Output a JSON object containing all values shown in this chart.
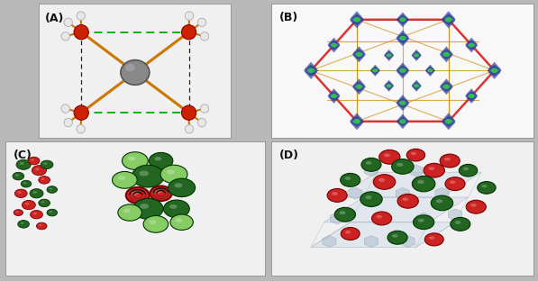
{
  "figure_bg": "#b8b8b8",
  "panel_bg": "#f0f0f0",
  "panels": [
    "(A)",
    "(B)",
    "(C)",
    "(D)"
  ],
  "label_fontsize": 9,
  "label_color": "#111111",
  "panel_A": {
    "center_atom_color": "#888888",
    "bh4_color": "#cc2200",
    "h_color": "#e8e8e8",
    "bond_color": "#cc7700",
    "dashed_black": "#222222",
    "dashed_green": "#00aa00"
  },
  "panel_B": {
    "hex_color": "#dd3333",
    "line_color": "#cc8800",
    "cluster_color": "#334499",
    "dot_color": "#33bb55",
    "bg": "#f8f8f8"
  },
  "panel_C": {
    "dark_green": "#226622",
    "light_green": "#88cc66",
    "red": "#cc2222",
    "bg": "#f0f0f0"
  },
  "panel_D": {
    "dark_green": "#226622",
    "red": "#cc2222",
    "gray_poly": "#99aabb",
    "bg": "#f0f0f0"
  }
}
